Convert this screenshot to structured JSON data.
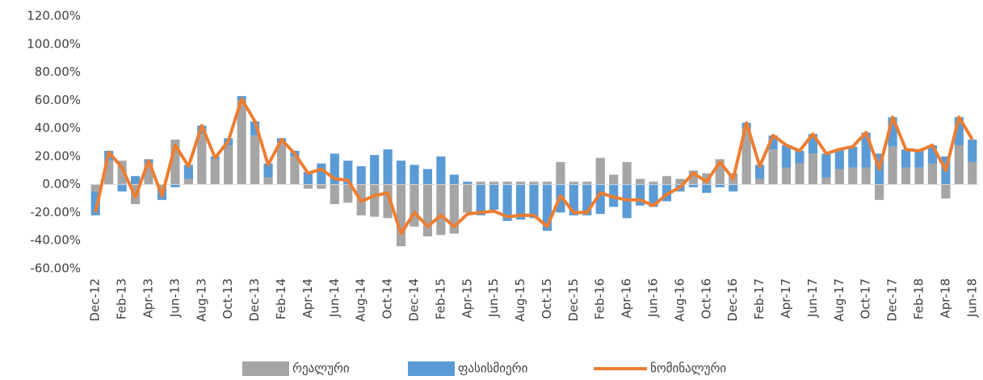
{
  "chart_data": {
    "type": "bar-line",
    "categories": [
      "Dec-12",
      null,
      "Feb-13",
      null,
      "Apr-13",
      null,
      "Jun-13",
      null,
      "Aug-13",
      null,
      "Oct-13",
      null,
      "Dec-13",
      null,
      "Feb-14",
      null,
      "Apr-14",
      null,
      "Jun-14",
      null,
      "Aug-14",
      null,
      "Oct-14",
      null,
      "Dec-14",
      null,
      "Feb-15",
      null,
      "Apr-15",
      null,
      "Jun-15",
      null,
      "Aug-15",
      null,
      "Oct-15",
      null,
      "Dec-15",
      null,
      "Feb-16",
      null,
      "Apr-16",
      null,
      "Jun-16",
      null,
      "Aug-16",
      null,
      "Oct-16",
      null,
      "Dec-16",
      null,
      "Feb-17",
      null,
      "Apr-17",
      null,
      "Jun-17",
      null,
      "Aug-17",
      null,
      "Oct-17",
      null,
      "Dec-17",
      null,
      "Feb-18",
      null,
      "Apr-18",
      null,
      "Jun-18"
    ],
    "series": [
      {
        "name": "რეალური",
        "type": "bar",
        "color": "#a5a5a5",
        "values": [
          -5,
          17,
          17,
          -14,
          15,
          -3,
          32,
          4,
          36,
          18,
          28,
          60,
          35,
          5,
          30,
          20,
          -3,
          -3,
          -14,
          -13,
          -22,
          -23,
          -24,
          -44,
          -30,
          -37,
          -36,
          -35,
          -20,
          2,
          2,
          2,
          2,
          2,
          2,
          16,
          2,
          2,
          19,
          7,
          16,
          4,
          2,
          6,
          4,
          10,
          8,
          18,
          8,
          40,
          4,
          25,
          12,
          15,
          22,
          5,
          11,
          12,
          12,
          -11,
          27,
          12,
          12,
          15,
          -10,
          28,
          16
        ]
      },
      {
        "name": "ფასისმიერი",
        "type": "bar",
        "color": "#5b9bd5",
        "values": [
          -17,
          7,
          -5,
          6,
          3,
          -8,
          -2,
          10,
          6,
          2,
          5,
          3,
          10,
          10,
          3,
          4,
          9,
          15,
          22,
          17,
          13,
          21,
          25,
          17,
          14,
          11,
          20,
          7,
          2,
          -22,
          -18,
          -26,
          -25,
          -24,
          -33,
          -20,
          -22,
          -22,
          -21,
          -16,
          -24,
          -15,
          -16,
          -12,
          -5,
          -2,
          -6,
          -2,
          -5,
          4,
          10,
          10,
          16,
          9,
          14,
          17,
          14,
          15,
          25,
          22,
          21,
          13,
          12,
          13,
          20,
          20,
          16
        ]
      },
      {
        "name": "ნომინალური",
        "type": "line",
        "color": "#ed7d31",
        "values": [
          -20,
          23,
          12,
          -9,
          17,
          -8,
          28,
          13,
          42,
          19,
          31,
          61,
          45,
          14,
          32,
          22,
          8,
          11,
          4,
          3,
          -12,
          -8,
          -6,
          -35,
          -20,
          -30,
          -22,
          -30,
          -21,
          -20,
          -19,
          -23,
          -22,
          -22,
          -30,
          -8,
          -20,
          -20,
          -6,
          -9,
          -11,
          -11,
          -15,
          -7,
          -2,
          8,
          2,
          16,
          4,
          44,
          13,
          35,
          28,
          24,
          36,
          22,
          25,
          27,
          37,
          11,
          48,
          25,
          24,
          28,
          10,
          48,
          32
        ]
      }
    ],
    "ylim": [
      -60,
      120
    ],
    "yticks": [
      {
        "value": -60,
        "label": "-60.00%"
      },
      {
        "value": -40,
        "label": "-40.00%"
      },
      {
        "value": -20,
        "label": "-20.00%"
      },
      {
        "value": 0,
        "label": "0.00%"
      },
      {
        "value": 20,
        "label": "20.00%"
      },
      {
        "value": 40,
        "label": "40.00%"
      },
      {
        "value": 60,
        "label": "60.00%"
      },
      {
        "value": 80,
        "label": "80.00%"
      },
      {
        "value": 100,
        "label": "100.00%"
      },
      {
        "value": 120,
        "label": "120.00%"
      }
    ],
    "grid": false,
    "legend": "bottom"
  }
}
